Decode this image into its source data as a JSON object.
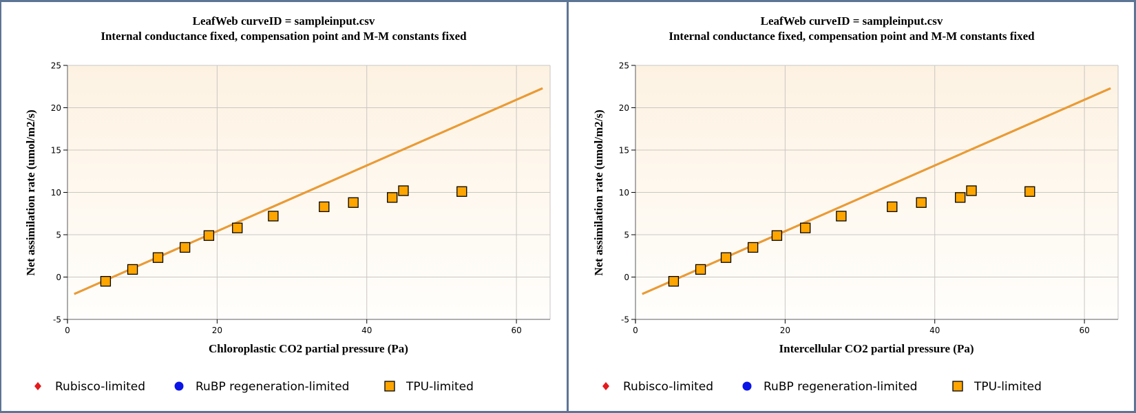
{
  "chart_data": [
    {
      "type": "scatter",
      "title": "LeafWeb curveID = sampleinput.csv",
      "subtitle": "Internal conductance fixed, compensation point and M-M constants fixed",
      "xlabel": "Chloroplastic CO2 partial pressure (Pa)",
      "ylabel": "Net assimilation rate (umol/m2/s)",
      "xlim": [
        0,
        64.5
      ],
      "ylim": [
        -5,
        25
      ],
      "xticks": [
        0,
        20,
        40,
        60
      ],
      "yticks": [
        -5,
        0,
        5,
        10,
        15,
        20,
        25
      ],
      "grid": true,
      "legend_position": "bottom",
      "legend": [
        {
          "label": "Rubisco-limited",
          "marker": "diamond",
          "color": "#e41a1c"
        },
        {
          "label": "RuBP regeneration-limited",
          "marker": "circle",
          "color": "#0a14e6"
        },
        {
          "label": "TPU-limited",
          "marker": "square",
          "color": "#ffa500"
        }
      ],
      "series": [
        {
          "name": "TPU-limited",
          "marker": "square",
          "color": "#ffa500",
          "x": [
            5.1,
            8.7,
            12.1,
            15.7,
            18.9,
            22.7,
            27.5,
            34.3,
            38.2,
            43.4,
            44.9,
            52.7
          ],
          "y": [
            -0.5,
            0.9,
            2.3,
            3.5,
            4.9,
            5.8,
            7.2,
            8.3,
            8.8,
            9.4,
            10.2,
            10.1
          ]
        }
      ],
      "fit_line": {
        "name": "model fit",
        "color": "#f0a030",
        "x": [
          0.9,
          63.5
        ],
        "y": [
          -2.0,
          22.3
        ]
      }
    },
    {
      "type": "scatter",
      "title": "LeafWeb curveID = sampleinput.csv",
      "subtitle": "Internal conductance fixed, compensation point and M-M constants fixed",
      "xlabel": "Intercellular CO2 partial pressure (Pa)",
      "ylabel": "Net assimilation rate (umol/m2/s)",
      "xlim": [
        0,
        64.5
      ],
      "ylim": [
        -5,
        25
      ],
      "xticks": [
        0,
        20,
        40,
        60
      ],
      "yticks": [
        -5,
        0,
        5,
        10,
        15,
        20,
        25
      ],
      "grid": true,
      "legend_position": "bottom",
      "legend": [
        {
          "label": "Rubisco-limited",
          "marker": "diamond",
          "color": "#e41a1c"
        },
        {
          "label": "RuBP regeneration-limited",
          "marker": "circle",
          "color": "#0a14e6"
        },
        {
          "label": "TPU-limited",
          "marker": "square",
          "color": "#ffa500"
        }
      ],
      "series": [
        {
          "name": "TPU-limited",
          "marker": "square",
          "color": "#ffa500",
          "x": [
            5.1,
            8.7,
            12.1,
            15.7,
            18.9,
            22.7,
            27.5,
            34.3,
            38.2,
            43.4,
            44.9,
            52.7
          ],
          "y": [
            -0.5,
            0.9,
            2.3,
            3.5,
            4.9,
            5.8,
            7.2,
            8.3,
            8.8,
            9.4,
            10.2,
            10.1
          ]
        }
      ],
      "fit_line": {
        "name": "model fit",
        "color": "#f0a030",
        "x": [
          0.9,
          63.5
        ],
        "y": [
          -2.0,
          22.3
        ]
      }
    }
  ]
}
